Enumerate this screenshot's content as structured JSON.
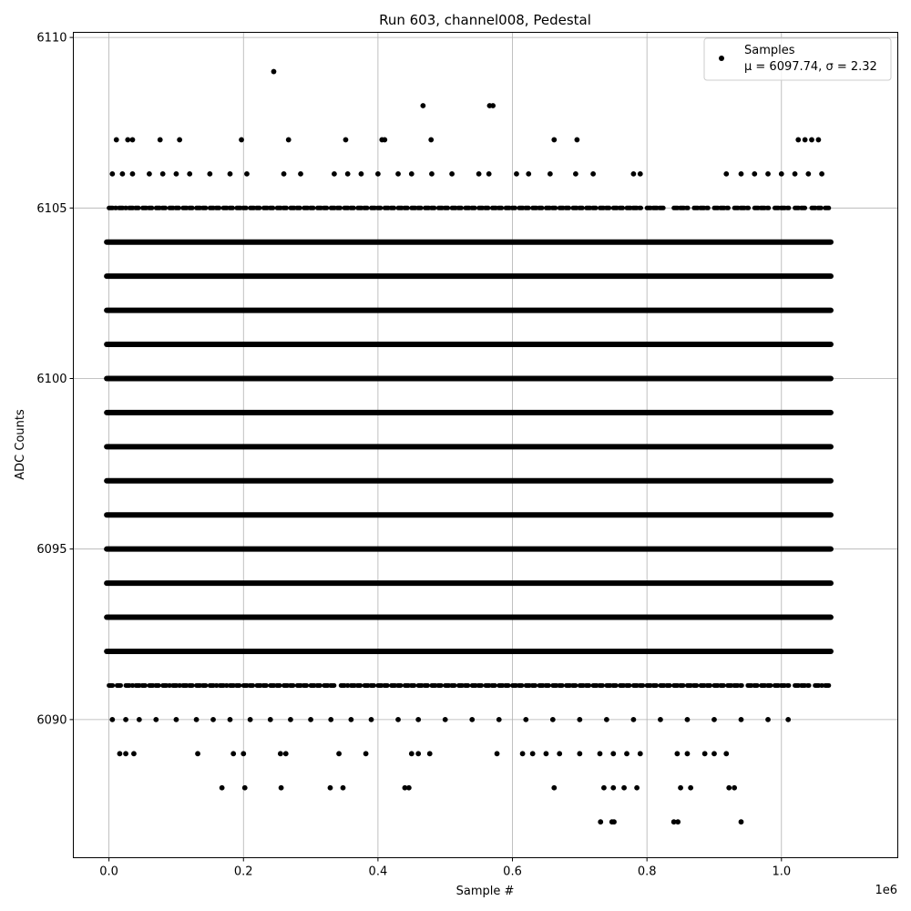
{
  "chart_data": {
    "type": "scatter",
    "title": "Run 603, channel008, Pedestal",
    "xlabel": "Sample #",
    "ylabel": "ADC Counts",
    "x_offset_label": "1e6",
    "xlim": [
      -0.053,
      1.173
    ],
    "ylim": [
      6085.95,
      6110.15
    ],
    "xticks": [
      0.0,
      0.2,
      0.4,
      0.6,
      0.8,
      1.0
    ],
    "xtick_labels": [
      "0.0",
      "0.2",
      "0.4",
      "0.6",
      "0.8",
      "1.0"
    ],
    "yticks": [
      6090,
      6095,
      6100,
      6105,
      6110
    ],
    "ytick_labels": [
      "6090",
      "6095",
      "6100",
      "6105",
      "6110"
    ],
    "grid": true,
    "marker_color": "#000000",
    "legend": {
      "placement": "top-right",
      "entries": [
        {
          "label": "Samples",
          "stats": "μ = 6097.74, σ = 2.32"
        }
      ]
    },
    "series": [
      {
        "name": "Samples",
        "dense_levels": [
          6092,
          6093,
          6094,
          6095,
          6096,
          6097,
          6098,
          6099,
          6100,
          6101,
          6102,
          6103,
          6104
        ],
        "dense_x_range": [
          0.0,
          1.07
        ],
        "semi_dense_levels": [
          {
            "y": 6091,
            "x": [
              0.0,
              0.012,
              0.025,
              0.04,
              0.06,
              0.08,
              0.095,
              0.11,
              0.13,
              0.15,
              0.165,
              0.18,
              0.2,
              0.22,
              0.24,
              0.26,
              0.28,
              0.3,
              0.32,
              0.345,
              0.36,
              0.38,
              0.4,
              0.42,
              0.44,
              0.46,
              0.48,
              0.5,
              0.52,
              0.54,
              0.56,
              0.58,
              0.6,
              0.62,
              0.64,
              0.66,
              0.68,
              0.7,
              0.72,
              0.74,
              0.76,
              0.78,
              0.8,
              0.82,
              0.84,
              0.86,
              0.88,
              0.9,
              0.92,
              0.95,
              0.97,
              0.99,
              1.02,
              1.05,
              1.065
            ]
          },
          {
            "y": 6105,
            "x": [
              0.0,
              0.015,
              0.03,
              0.05,
              0.07,
              0.09,
              0.11,
              0.13,
              0.15,
              0.17,
              0.19,
              0.21,
              0.23,
              0.25,
              0.27,
              0.29,
              0.31,
              0.33,
              0.35,
              0.37,
              0.39,
              0.41,
              0.43,
              0.45,
              0.47,
              0.49,
              0.51,
              0.53,
              0.55,
              0.57,
              0.59,
              0.61,
              0.63,
              0.65,
              0.67,
              0.69,
              0.71,
              0.73,
              0.75,
              0.77,
              0.8,
              0.84,
              0.87,
              0.9,
              0.93,
              0.96,
              0.99,
              1.02,
              1.045,
              1.065
            ]
          }
        ],
        "sparse_points": [
          {
            "x": 0.245,
            "y": 6109
          },
          {
            "x": 0.467,
            "y": 6108
          },
          {
            "x": 0.566,
            "y": 6108
          },
          {
            "x": 0.571,
            "y": 6108
          },
          {
            "x": 0.011,
            "y": 6107
          },
          {
            "x": 0.028,
            "y": 6107
          },
          {
            "x": 0.035,
            "y": 6107
          },
          {
            "x": 0.076,
            "y": 6107
          },
          {
            "x": 0.105,
            "y": 6107
          },
          {
            "x": 0.197,
            "y": 6107
          },
          {
            "x": 0.267,
            "y": 6107
          },
          {
            "x": 0.352,
            "y": 6107
          },
          {
            "x": 0.406,
            "y": 6107
          },
          {
            "x": 0.41,
            "y": 6107
          },
          {
            "x": 0.479,
            "y": 6107
          },
          {
            "x": 0.662,
            "y": 6107
          },
          {
            "x": 0.696,
            "y": 6107
          },
          {
            "x": 1.025,
            "y": 6107
          },
          {
            "x": 1.035,
            "y": 6107
          },
          {
            "x": 1.045,
            "y": 6107
          },
          {
            "x": 1.055,
            "y": 6107
          },
          {
            "x": 0.005,
            "y": 6106
          },
          {
            "x": 0.02,
            "y": 6106
          },
          {
            "x": 0.035,
            "y": 6106
          },
          {
            "x": 0.06,
            "y": 6106
          },
          {
            "x": 0.08,
            "y": 6106
          },
          {
            "x": 0.1,
            "y": 6106
          },
          {
            "x": 0.12,
            "y": 6106
          },
          {
            "x": 0.15,
            "y": 6106
          },
          {
            "x": 0.18,
            "y": 6106
          },
          {
            "x": 0.205,
            "y": 6106
          },
          {
            "x": 0.26,
            "y": 6106
          },
          {
            "x": 0.285,
            "y": 6106
          },
          {
            "x": 0.335,
            "y": 6106
          },
          {
            "x": 0.355,
            "y": 6106
          },
          {
            "x": 0.375,
            "y": 6106
          },
          {
            "x": 0.4,
            "y": 6106
          },
          {
            "x": 0.43,
            "y": 6106
          },
          {
            "x": 0.45,
            "y": 6106
          },
          {
            "x": 0.48,
            "y": 6106
          },
          {
            "x": 0.51,
            "y": 6106
          },
          {
            "x": 0.55,
            "y": 6106
          },
          {
            "x": 0.565,
            "y": 6106
          },
          {
            "x": 0.606,
            "y": 6106
          },
          {
            "x": 0.624,
            "y": 6106
          },
          {
            "x": 0.656,
            "y": 6106
          },
          {
            "x": 0.694,
            "y": 6106
          },
          {
            "x": 0.72,
            "y": 6106
          },
          {
            "x": 0.78,
            "y": 6106
          },
          {
            "x": 0.79,
            "y": 6106
          },
          {
            "x": 0.918,
            "y": 6106
          },
          {
            "x": 0.94,
            "y": 6106
          },
          {
            "x": 0.96,
            "y": 6106
          },
          {
            "x": 0.98,
            "y": 6106
          },
          {
            "x": 1.0,
            "y": 6106
          },
          {
            "x": 1.02,
            "y": 6106
          },
          {
            "x": 1.04,
            "y": 6106
          },
          {
            "x": 1.06,
            "y": 6106
          },
          {
            "x": 0.005,
            "y": 6090
          },
          {
            "x": 0.025,
            "y": 6090
          },
          {
            "x": 0.045,
            "y": 6090
          },
          {
            "x": 0.07,
            "y": 6090
          },
          {
            "x": 0.1,
            "y": 6090
          },
          {
            "x": 0.13,
            "y": 6090
          },
          {
            "x": 0.155,
            "y": 6090
          },
          {
            "x": 0.18,
            "y": 6090
          },
          {
            "x": 0.21,
            "y": 6090
          },
          {
            "x": 0.24,
            "y": 6090
          },
          {
            "x": 0.27,
            "y": 6090
          },
          {
            "x": 0.3,
            "y": 6090
          },
          {
            "x": 0.33,
            "y": 6090
          },
          {
            "x": 0.36,
            "y": 6090
          },
          {
            "x": 0.39,
            "y": 6090
          },
          {
            "x": 0.43,
            "y": 6090
          },
          {
            "x": 0.46,
            "y": 6090
          },
          {
            "x": 0.5,
            "y": 6090
          },
          {
            "x": 0.54,
            "y": 6090
          },
          {
            "x": 0.58,
            "y": 6090
          },
          {
            "x": 0.62,
            "y": 6090
          },
          {
            "x": 0.66,
            "y": 6090
          },
          {
            "x": 0.7,
            "y": 6090
          },
          {
            "x": 0.74,
            "y": 6090
          },
          {
            "x": 0.78,
            "y": 6090
          },
          {
            "x": 0.82,
            "y": 6090
          },
          {
            "x": 0.86,
            "y": 6090
          },
          {
            "x": 0.9,
            "y": 6090
          },
          {
            "x": 0.94,
            "y": 6090
          },
          {
            "x": 0.98,
            "y": 6090
          },
          {
            "x": 1.01,
            "y": 6090
          },
          {
            "x": 0.016,
            "y": 6089
          },
          {
            "x": 0.025,
            "y": 6089
          },
          {
            "x": 0.037,
            "y": 6089
          },
          {
            "x": 0.132,
            "y": 6089
          },
          {
            "x": 0.185,
            "y": 6089
          },
          {
            "x": 0.2,
            "y": 6089
          },
          {
            "x": 0.255,
            "y": 6089
          },
          {
            "x": 0.263,
            "y": 6089
          },
          {
            "x": 0.342,
            "y": 6089
          },
          {
            "x": 0.382,
            "y": 6089
          },
          {
            "x": 0.45,
            "y": 6089
          },
          {
            "x": 0.46,
            "y": 6089
          },
          {
            "x": 0.477,
            "y": 6089
          },
          {
            "x": 0.577,
            "y": 6089
          },
          {
            "x": 0.615,
            "y": 6089
          },
          {
            "x": 0.63,
            "y": 6089
          },
          {
            "x": 0.65,
            "y": 6089
          },
          {
            "x": 0.67,
            "y": 6089
          },
          {
            "x": 0.7,
            "y": 6089
          },
          {
            "x": 0.73,
            "y": 6089
          },
          {
            "x": 0.75,
            "y": 6089
          },
          {
            "x": 0.77,
            "y": 6089
          },
          {
            "x": 0.79,
            "y": 6089
          },
          {
            "x": 0.845,
            "y": 6089
          },
          {
            "x": 0.86,
            "y": 6089
          },
          {
            "x": 0.886,
            "y": 6089
          },
          {
            "x": 0.9,
            "y": 6089
          },
          {
            "x": 0.918,
            "y": 6089
          },
          {
            "x": 0.168,
            "y": 6088
          },
          {
            "x": 0.202,
            "y": 6088
          },
          {
            "x": 0.256,
            "y": 6088
          },
          {
            "x": 0.329,
            "y": 6088
          },
          {
            "x": 0.348,
            "y": 6088
          },
          {
            "x": 0.44,
            "y": 6088
          },
          {
            "x": 0.446,
            "y": 6088
          },
          {
            "x": 0.662,
            "y": 6088
          },
          {
            "x": 0.736,
            "y": 6088
          },
          {
            "x": 0.75,
            "y": 6088
          },
          {
            "x": 0.766,
            "y": 6088
          },
          {
            "x": 0.785,
            "y": 6088
          },
          {
            "x": 0.85,
            "y": 6088
          },
          {
            "x": 0.865,
            "y": 6088
          },
          {
            "x": 0.922,
            "y": 6088
          },
          {
            "x": 0.93,
            "y": 6088
          },
          {
            "x": 0.731,
            "y": 6087
          },
          {
            "x": 0.748,
            "y": 6087
          },
          {
            "x": 0.751,
            "y": 6087
          },
          {
            "x": 0.84,
            "y": 6087
          },
          {
            "x": 0.846,
            "y": 6087
          },
          {
            "x": 0.94,
            "y": 6087
          }
        ]
      }
    ]
  }
}
